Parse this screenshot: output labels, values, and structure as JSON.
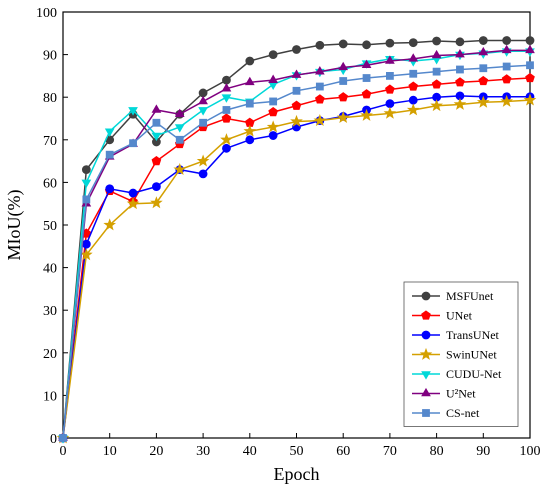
{
  "chart_data": {
    "type": "line",
    "xlabel": "Epoch",
    "ylabel": "MIoU(%)",
    "xlim": [
      0,
      100
    ],
    "ylim": [
      0,
      100
    ],
    "x_ticks": [
      0,
      10,
      20,
      30,
      40,
      50,
      60,
      70,
      80,
      90,
      100
    ],
    "y_ticks": [
      0,
      10,
      20,
      30,
      40,
      50,
      60,
      70,
      80,
      90,
      100
    ],
    "grid": false,
    "legend_position": "bottom-right",
    "x": [
      0,
      5,
      10,
      15,
      20,
      25,
      30,
      35,
      40,
      45,
      50,
      55,
      60,
      65,
      70,
      75,
      80,
      85,
      90,
      95,
      100
    ],
    "series": [
      {
        "name": "MSFUnet",
        "color": "#404040",
        "marker": "circle",
        "values": [
          0,
          63,
          70,
          76,
          69.5,
          76,
          81,
          84,
          88.5,
          90,
          91.2,
          92.2,
          92.5,
          92.3,
          92.7,
          92.8,
          93.2,
          93,
          93.3,
          93.3,
          93.3
        ]
      },
      {
        "name": "UNet",
        "color": "#ff0000",
        "marker": "pentagon",
        "values": [
          0,
          48,
          58,
          55.5,
          65,
          69,
          73,
          75,
          74,
          76.5,
          78,
          79.5,
          80,
          80.7,
          81.8,
          82.5,
          83,
          83.5,
          83.8,
          84.2,
          84.5
        ]
      },
      {
        "name": "TransUNet",
        "color": "#0000ff",
        "marker": "circle",
        "values": [
          0,
          45.5,
          58.5,
          57.5,
          59,
          63,
          62,
          68,
          70,
          71,
          73,
          74.5,
          75.5,
          77,
          78.5,
          79.3,
          80,
          80.3,
          80.1,
          80.1,
          80.1
        ]
      },
      {
        "name": "SwinUNet",
        "color": "#d4a000",
        "marker": "star",
        "values": [
          0,
          43,
          50,
          55,
          55.2,
          63,
          65,
          70,
          72,
          73,
          74.3,
          74.5,
          75.2,
          75.7,
          76.2,
          77,
          78,
          78.3,
          78.8,
          79,
          79.3
        ]
      },
      {
        "name": "CUDU-Net",
        "color": "#00d8d8",
        "marker": "triangle-down",
        "values": [
          0,
          60,
          72,
          77,
          71,
          73,
          77,
          80,
          79,
          83,
          85.2,
          86,
          86.5,
          88,
          89,
          88.5,
          89,
          90,
          90.3,
          90.8,
          90.8
        ]
      },
      {
        "name": "U²Net",
        "color": "#800080",
        "marker": "triangle-up",
        "values": [
          0,
          55,
          66,
          69,
          77,
          76,
          79,
          82,
          83.5,
          84,
          85.2,
          86,
          87,
          87.5,
          88.5,
          89,
          89.8,
          90,
          90.5,
          91,
          91
        ]
      },
      {
        "name": "CS-net",
        "color": "#5588cc",
        "marker": "square",
        "values": [
          0,
          56,
          66.5,
          69.2,
          74,
          70,
          74,
          77,
          78.5,
          79,
          81.5,
          82.5,
          83.8,
          84.5,
          85,
          85.5,
          86,
          86.5,
          86.8,
          87.2,
          87.5
        ]
      }
    ]
  }
}
